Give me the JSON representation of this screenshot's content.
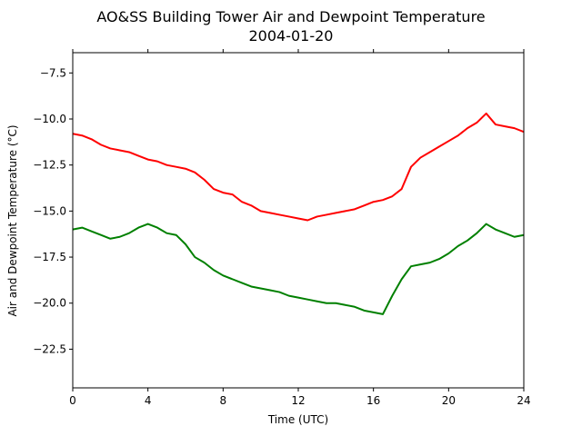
{
  "chart_data": {
    "type": "line",
    "title": "AO&SS Building Tower Air and Dewpoint Temperature",
    "subtitle": "2004-01-20",
    "xlabel": "Time (UTC)",
    "ylabel": "Air and Dewpoint Temperature (°C)",
    "xlim": [
      0,
      24
    ],
    "ylim": [
      -24.6,
      -6.4
    ],
    "xticks": [
      0,
      4,
      8,
      12,
      16,
      20,
      24
    ],
    "xtick_labels": [
      "0",
      "4",
      "8",
      "12",
      "16",
      "20",
      "24"
    ],
    "yticks": [
      -7.5,
      -10.0,
      -12.5,
      -15.0,
      -17.5,
      -20.0,
      -22.5
    ],
    "ytick_labels": [
      "−7.5",
      "−10.0",
      "−12.5",
      "−15.0",
      "−17.5",
      "−20.0",
      "−22.5"
    ],
    "grid": false,
    "series": [
      {
        "color": "#ff0000",
        "x": [
          0,
          0.5,
          1,
          1.5,
          2,
          2.5,
          3,
          3.5,
          4,
          4.5,
          5,
          5.5,
          6,
          6.5,
          7,
          7.5,
          8,
          8.5,
          9,
          9.5,
          10,
          10.5,
          11,
          11.5,
          12,
          12.5,
          13,
          13.5,
          14,
          14.5,
          15,
          15.5,
          16,
          16.5,
          17,
          17.5,
          18,
          18.5,
          19,
          19.5,
          20,
          20.5,
          21,
          21.5,
          22,
          22.5,
          23,
          23.5,
          24
        ],
        "y": [
          -10.8,
          -10.9,
          -11.1,
          -11.4,
          -11.6,
          -11.7,
          -11.8,
          -12.0,
          -12.2,
          -12.3,
          -12.5,
          -12.6,
          -12.7,
          -12.9,
          -13.3,
          -13.8,
          -14.0,
          -14.1,
          -14.5,
          -14.7,
          -15.0,
          -15.1,
          -15.2,
          -15.3,
          -15.4,
          -15.5,
          -15.3,
          -15.2,
          -15.1,
          -15.0,
          -14.9,
          -14.7,
          -14.5,
          -14.4,
          -14.2,
          -13.8,
          -12.6,
          -12.1,
          -11.8,
          -11.5,
          -11.2,
          -10.9,
          -10.5,
          -10.2,
          -9.7,
          -10.3,
          -10.4,
          -10.5,
          -10.7
        ]
      },
      {
        "color": "#008000",
        "x": [
          0,
          0.5,
          1,
          1.5,
          2,
          2.5,
          3,
          3.5,
          4,
          4.5,
          5,
          5.5,
          6,
          6.5,
          7,
          7.5,
          8,
          8.5,
          9,
          9.5,
          10,
          10.5,
          11,
          11.5,
          12,
          12.5,
          13,
          13.5,
          14,
          14.5,
          15,
          15.5,
          16,
          16.5,
          17,
          17.5,
          18,
          18.5,
          19,
          19.5,
          20,
          20.5,
          21,
          21.5,
          22,
          22.5,
          23,
          23.5,
          24
        ],
        "y": [
          -16.0,
          -15.9,
          -16.1,
          -16.3,
          -16.5,
          -16.4,
          -16.2,
          -15.9,
          -15.7,
          -15.9,
          -16.2,
          -16.3,
          -16.8,
          -17.5,
          -17.8,
          -18.2,
          -18.5,
          -18.7,
          -18.9,
          -19.1,
          -19.2,
          -19.3,
          -19.4,
          -19.6,
          -19.7,
          -19.8,
          -19.9,
          -20.0,
          -20.0,
          -20.1,
          -20.2,
          -20.4,
          -20.5,
          -20.6,
          -19.6,
          -18.7,
          -18.0,
          -17.9,
          -17.8,
          -17.6,
          -17.3,
          -16.9,
          -16.6,
          -16.2,
          -15.7,
          -16.0,
          -16.2,
          -16.4,
          -16.3
        ]
      }
    ]
  }
}
